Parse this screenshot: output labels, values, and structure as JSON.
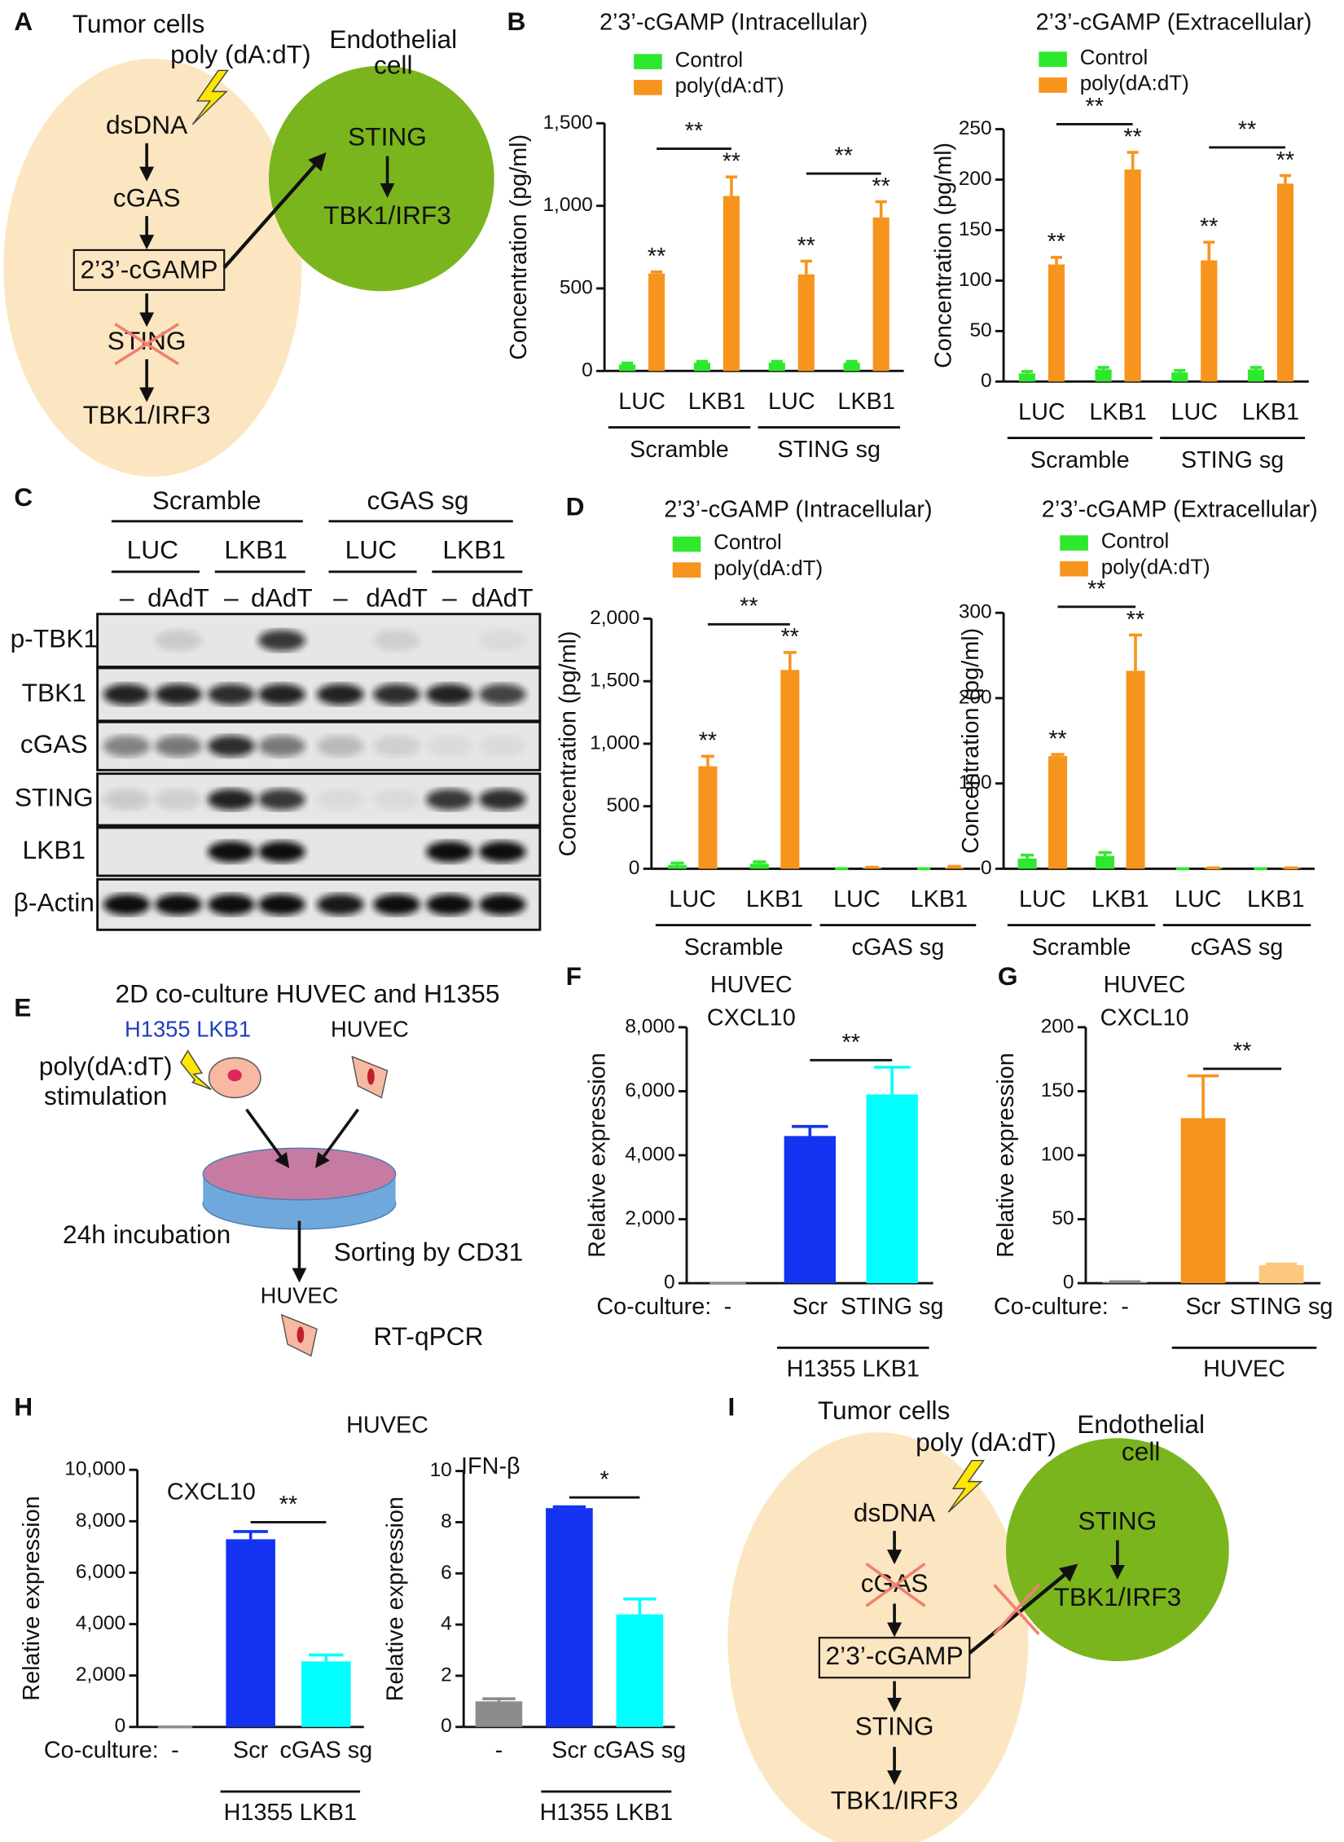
{
  "panel_a": {
    "label": "A",
    "tumor_cells": "Tumor cells",
    "stimulus": "poly (dA:dT)",
    "endothelial": [
      "Endothelial",
      "cell"
    ],
    "tumor_pathway": [
      "dsDNA",
      "cGAS",
      "2’3’-cGAMP",
      "STING",
      "TBK1/IRF3"
    ],
    "endothelial_pathway": [
      "STING",
      "TBK1/IRF3"
    ]
  },
  "panel_c": {
    "label": "C",
    "groups": [
      "Scramble",
      "cGAS sg"
    ],
    "cell_lines": [
      "LUC",
      "LKB1",
      "LUC",
      "LKB1"
    ],
    "treatments": [
      "–",
      "dAdT",
      "–",
      "dAdT",
      "–",
      "dAdT",
      "–",
      "dAdT"
    ],
    "rows": [
      "p-TBK1",
      "TBK1",
      "cGAS",
      "STING",
      "LKB1",
      "β-Actin"
    ]
  },
  "panel_e": {
    "label": "E",
    "title": "2D co-culture HUVEC and H1355",
    "donor": "H1355 LKB1",
    "recipient": "HUVEC",
    "stimulus": [
      "poly(dA:dT)",
      "stimulation"
    ],
    "incubation": "24h incubation",
    "sorting": "Sorting by CD31",
    "output": "HUVEC",
    "assay": "RT-qPCR"
  },
  "panel_i": {
    "label": "I",
    "tumor_cells": "Tumor cells",
    "stimulus": "poly (dA:dT)",
    "endothelial": [
      "Endothelial",
      "cell"
    ],
    "tumor_pathway": [
      "dsDNA",
      "cGAS",
      "2’3’-cGAMP",
      "STING",
      "TBK1/IRF3"
    ],
    "endothelial_pathway": [
      "STING",
      "TBK1/IRF3"
    ]
  },
  "chart_data": [
    {
      "panel": "B",
      "type": "bar",
      "title": "2’3’-cGAMP (Intracellular)",
      "y_label": "Concentration (pg/ml)",
      "categories": [
        "LUC",
        "LKB1",
        "LUC",
        "LKB1"
      ],
      "groups": [
        "Scramble",
        "STING sg"
      ],
      "series": [
        {
          "name": "Control",
          "color": "#2ee82e",
          "values": [
            40,
            50,
            50,
            50
          ],
          "errors": [
            8,
            8,
            8,
            8
          ]
        },
        {
          "name": "poly(dA:dT)",
          "color": "#f7941d",
          "values": [
            590,
            1060,
            585,
            930
          ],
          "errors": [
            10,
            115,
            80,
            95
          ]
        }
      ],
      "ylim": [
        0,
        1500
      ],
      "yticks": [
        0,
        500,
        {
          "value": 1000,
          "label": "1,000"
        },
        {
          "value": 1500,
          "label": "1,500"
        }
      ],
      "annotations": [
        "**",
        "**",
        "**",
        "**",
        "**",
        "**"
      ]
    },
    {
      "type": "bar",
      "title": "2’3’-cGAMP (Extracellular)",
      "y_label": "Concentration (pg/ml)",
      "categories": [
        "LUC",
        "LKB1",
        "LUC",
        "LKB1"
      ],
      "groups": [
        "Scramble",
        "STING sg"
      ],
      "series": [
        {
          "name": "Control",
          "color": "#2ee82e",
          "values": [
            8,
            12,
            9,
            12
          ],
          "errors": [
            2,
            2,
            2,
            2
          ]
        },
        {
          "name": "poly(dA:dT)",
          "color": "#f7941d",
          "values": [
            116,
            210,
            120,
            196
          ],
          "errors": [
            7,
            17,
            18,
            8
          ]
        }
      ],
      "ylim": [
        0,
        250
      ],
      "yticks": [
        0,
        50,
        100,
        150,
        200,
        250
      ],
      "annotations": [
        "**",
        "**",
        "**",
        "**",
        "**",
        "**"
      ]
    },
    {
      "panel": "D",
      "type": "bar",
      "title": "2’3’-cGAMP (Intracellular)",
      "y_label": "Concentration (pg/ml)",
      "categories": [
        "LUC",
        "LKB1",
        "LUC",
        "LKB1"
      ],
      "groups": [
        "Scramble",
        "cGAS sg"
      ],
      "series": [
        {
          "name": "Control",
          "color": "#2ee82e",
          "values": [
            30,
            40,
            0,
            0
          ],
          "errors": [
            15,
            15,
            0,
            0
          ]
        },
        {
          "name": "poly(dA:dT)",
          "color": "#f7941d",
          "values": [
            820,
            1590,
            8,
            12
          ],
          "errors": [
            80,
            140,
            4,
            6
          ]
        }
      ],
      "ylim": [
        0,
        2000
      ],
      "yticks": [
        0,
        500,
        {
          "value": 1000,
          "label": "1,000"
        },
        {
          "value": 1500,
          "label": "1,500"
        },
        {
          "value": 2000,
          "label": "2,000"
        }
      ],
      "annotations": [
        "**",
        "**",
        "**"
      ]
    },
    {
      "type": "bar",
      "title": "2’3’-cGAMP (Extracellular)",
      "y_label": "Concentration (pg/ml)",
      "categories": [
        "LUC",
        "LKB1",
        "LUC",
        "LKB1"
      ],
      "groups": [
        "Scramble",
        "cGAS sg"
      ],
      "series": [
        {
          "name": "Control",
          "color": "#2ee82e",
          "values": [
            12,
            15,
            0,
            0
          ],
          "errors": [
            4,
            4,
            0,
            0
          ]
        },
        {
          "name": "poly(dA:dT)",
          "color": "#f7941d",
          "values": [
            132,
            232,
            1,
            1
          ],
          "errors": [
            2,
            42,
            0,
            0
          ]
        }
      ],
      "ylim": [
        0,
        300
      ],
      "yticks": [
        0,
        100,
        200,
        300
      ],
      "annotations": [
        "**",
        "**",
        "**"
      ]
    },
    {
      "panel": "F",
      "type": "bar",
      "title": "HUVEC",
      "subtitle": "CXCL10",
      "y_label": "Relative expression",
      "x_label": "Co-culture:",
      "categories": [
        "-",
        "Scr",
        "STING sg"
      ],
      "bracket_label": "H1355 LKB1",
      "bracket_label_color": "#1f3fbf",
      "series": [
        {
          "colors": [
            "#8c8c8c",
            "#1433f0",
            "#00ffff"
          ],
          "values": [
            1,
            4600,
            5900
          ],
          "errors": [
            0.1,
            300,
            850
          ]
        }
      ],
      "ylim": [
        0,
        8000
      ],
      "yticks": [
        0,
        {
          "value": 2000,
          "label": "2,000"
        },
        {
          "value": 4000,
          "label": "4,000"
        },
        {
          "value": 6000,
          "label": "6,000"
        },
        {
          "value": 8000,
          "label": "8,000"
        }
      ],
      "annotations": [
        "**"
      ]
    },
    {
      "panel": "G",
      "type": "bar",
      "title": "HUVEC",
      "subtitle": "CXCL10",
      "y_label": "Relative expression",
      "x_label": "Co-culture:",
      "categories": [
        "-",
        "Scr",
        "STING sg"
      ],
      "bracket_label": "HUVEC",
      "bracket_label_color": "#000000",
      "series": [
        {
          "colors": [
            "#8c8c8c",
            "#f7941d",
            "#fdc77e"
          ],
          "values": [
            1,
            129,
            14
          ],
          "errors": [
            0.1,
            33,
            1
          ]
        }
      ],
      "ylim": [
        0,
        200
      ],
      "yticks": [
        0,
        50,
        100,
        150,
        200
      ],
      "annotations": [
        "**"
      ]
    },
    {
      "panel": "H",
      "header": "HUVEC",
      "type": "bar",
      "title": "CXCL10",
      "y_label": "Relative expression",
      "x_label": "Co-culture:",
      "categories": [
        "-",
        "Scr",
        "cGAS sg"
      ],
      "bracket_label": "H1355 LKB1",
      "bracket_label_color": "#1f3fbf",
      "series": [
        {
          "colors": [
            "#8c8c8c",
            "#1433f0",
            "#00ffff"
          ],
          "values": [
            1,
            7300,
            2550
          ],
          "errors": [
            0.1,
            300,
            250
          ]
        }
      ],
      "ylim": [
        0,
        10000
      ],
      "yticks": [
        0,
        {
          "value": 2000,
          "label": "2,000"
        },
        {
          "value": 4000,
          "label": "4,000"
        },
        {
          "value": 6000,
          "label": "6,000"
        },
        {
          "value": 8000,
          "label": "8,000"
        },
        {
          "value": 10000,
          "label": "10,000"
        }
      ],
      "annotations": [
        "**"
      ]
    },
    {
      "type": "bar",
      "title": "IFN-β",
      "y_label": "Relative expression",
      "categories": [
        "-",
        "Scr",
        "cGAS sg"
      ],
      "bracket_label": "H1355 LKB1",
      "bracket_label_color": "#1f3fbf",
      "series": [
        {
          "colors": [
            "#8c8c8c",
            "#1433f0",
            "#00ffff"
          ],
          "values": [
            1.0,
            8.55,
            4.4
          ],
          "errors": [
            0.1,
            0.05,
            0.6
          ]
        }
      ],
      "ylim": [
        0,
        10
      ],
      "yticks": [
        0,
        2,
        4,
        6,
        8,
        10
      ],
      "annotations": [
        "*"
      ]
    }
  ]
}
